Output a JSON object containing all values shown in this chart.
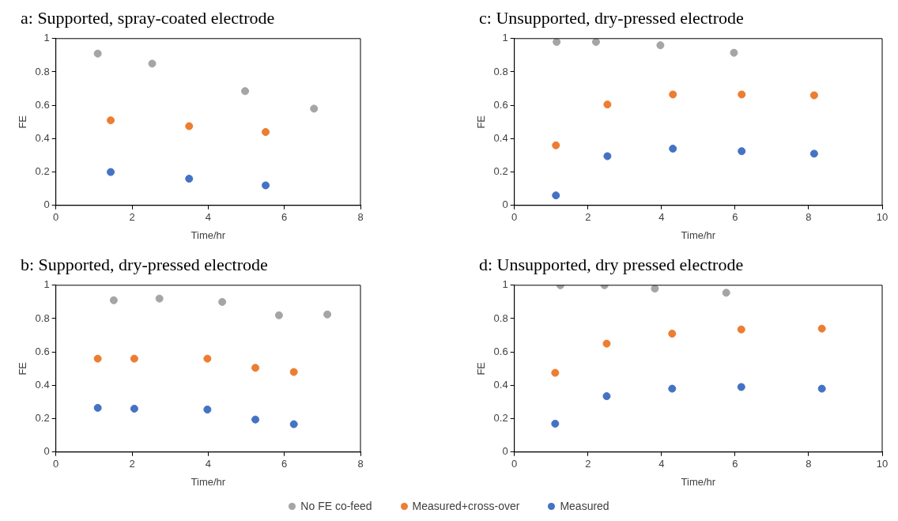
{
  "chart_data": [
    {
      "type": "scatter",
      "title": "a: Supported, spray-coated electrode",
      "xlabel": "Time/hr",
      "ylabel": "FE",
      "xlim": [
        0,
        8
      ],
      "xticks": [
        0,
        2,
        4,
        6,
        8
      ],
      "ylim": [
        0,
        1
      ],
      "yticks": [
        0,
        0.2,
        0.4,
        0.6,
        0.8,
        1
      ],
      "marker": "circle",
      "grid": false,
      "series": [
        {
          "color": "#a5a5a5",
          "x": [
            1.1,
            2.53,
            4.97,
            6.78
          ],
          "values": [
            0.91,
            0.85,
            0.685,
            0.58
          ]
        },
        {
          "color": "#ed7d31",
          "x": [
            1.44,
            3.5,
            5.51
          ],
          "values": [
            0.51,
            0.475,
            0.44
          ]
        },
        {
          "color": "#4472c4",
          "x": [
            1.44,
            3.5,
            5.51
          ],
          "values": [
            0.2,
            0.16,
            0.12
          ]
        }
      ]
    },
    {
      "type": "scatter",
      "title": "c: Unsupported, dry-pressed electrode",
      "xlabel": "Time/hr",
      "ylabel": "FE",
      "xlim": [
        0,
        10
      ],
      "xticks": [
        0,
        2,
        4,
        6,
        8,
        10
      ],
      "ylim": [
        0,
        1
      ],
      "yticks": [
        0,
        0.2,
        0.4,
        0.6,
        0.8,
        1
      ],
      "marker": "circle",
      "grid": false,
      "series": [
        {
          "color": "#a5a5a5",
          "x": [
            1.15,
            2.22,
            3.97,
            5.97
          ],
          "values": [
            0.98,
            0.98,
            0.96,
            0.915
          ]
        },
        {
          "color": "#ed7d31",
          "x": [
            1.13,
            2.53,
            4.31,
            6.18,
            8.15
          ],
          "values": [
            0.36,
            0.605,
            0.665,
            0.665,
            0.66
          ]
        },
        {
          "color": "#4472c4",
          "x": [
            1.13,
            2.53,
            4.31,
            6.18,
            8.15
          ],
          "values": [
            0.06,
            0.295,
            0.34,
            0.325,
            0.31
          ]
        }
      ]
    },
    {
      "type": "scatter",
      "title": "b: Supported, dry-pressed electrode",
      "xlabel": "Time/hr",
      "ylabel": "FE",
      "xlim": [
        0,
        8
      ],
      "xticks": [
        0,
        2,
        4,
        6,
        8
      ],
      "ylim": [
        0,
        1
      ],
      "yticks": [
        0,
        0.2,
        0.4,
        0.6,
        0.8,
        1
      ],
      "marker": "circle",
      "grid": false,
      "series": [
        {
          "color": "#a5a5a5",
          "x": [
            1.52,
            2.72,
            4.37,
            5.86,
            7.13
          ],
          "values": [
            0.91,
            0.92,
            0.9,
            0.82,
            0.825
          ]
        },
        {
          "color": "#ed7d31",
          "x": [
            1.1,
            2.06,
            3.98,
            5.24,
            6.25
          ],
          "values": [
            0.56,
            0.56,
            0.56,
            0.505,
            0.48
          ]
        },
        {
          "color": "#4472c4",
          "x": [
            1.1,
            2.06,
            3.98,
            5.24,
            6.25
          ],
          "values": [
            0.265,
            0.26,
            0.255,
            0.195,
            0.167
          ]
        }
      ]
    },
    {
      "type": "scatter",
      "title": "d: Unsupported, dry pressed electrode",
      "xlabel": "Time/hr",
      "ylabel": "FE",
      "xlim": [
        0,
        10
      ],
      "xticks": [
        0,
        2,
        4,
        6,
        8,
        10
      ],
      "ylim": [
        0,
        1
      ],
      "yticks": [
        0,
        0.2,
        0.4,
        0.6,
        0.8,
        1
      ],
      "marker": "circle",
      "grid": false,
      "legend": "bottom",
      "series": [
        {
          "name": "No FE co-feed",
          "color": "#a5a5a5",
          "x": [
            1.25,
            2.45,
            3.82,
            5.76
          ],
          "values": [
            1,
            1,
            0.98,
            0.955
          ]
        },
        {
          "name": "Measured+cross-over",
          "color": "#ed7d31",
          "x": [
            1.11,
            2.51,
            4.29,
            6.17,
            8.36
          ],
          "values": [
            0.475,
            0.65,
            0.71,
            0.735,
            0.74
          ]
        },
        {
          "name": "Measured",
          "color": "#4472c4",
          "x": [
            1.11,
            2.51,
            4.29,
            6.17,
            8.36
          ],
          "values": [
            0.17,
            0.335,
            0.38,
            0.39,
            0.38
          ]
        }
      ]
    }
  ]
}
